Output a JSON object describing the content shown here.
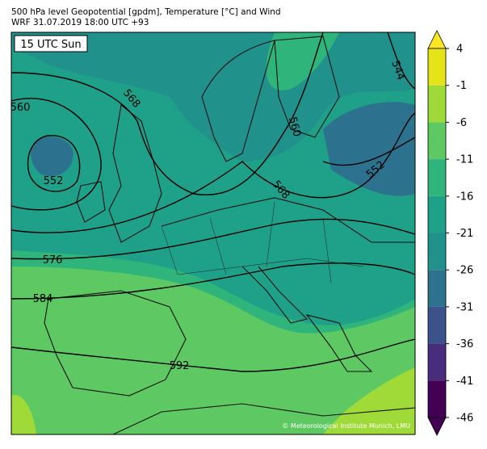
{
  "header": {
    "title": "500 hPa level Geopotential [gpdm], Temperature [°C] and Wind",
    "subtitle": "WRF 31.07.2019 18:00 UTC +93"
  },
  "map": {
    "time_label": "15 UTC Sun",
    "contour_labels": [
      "560",
      "568",
      "552",
      "576",
      "584",
      "592",
      "544",
      "560",
      "568",
      "552"
    ],
    "credit": "© Meteorological Institute Munich, LMU"
  },
  "colorbar": {
    "ticks": [
      4,
      -1,
      -6,
      -11,
      -16,
      -21,
      -26,
      -31,
      -36,
      -41,
      -46
    ],
    "colors": [
      "#e5e419",
      "#a0da39",
      "#5ec962",
      "#2fb47c",
      "#1fa088",
      "#21918c",
      "#2c728e",
      "#3b528b",
      "#472d7b",
      "#440154"
    ],
    "extend_top": "#fde725",
    "extend_bottom": "#440154"
  }
}
